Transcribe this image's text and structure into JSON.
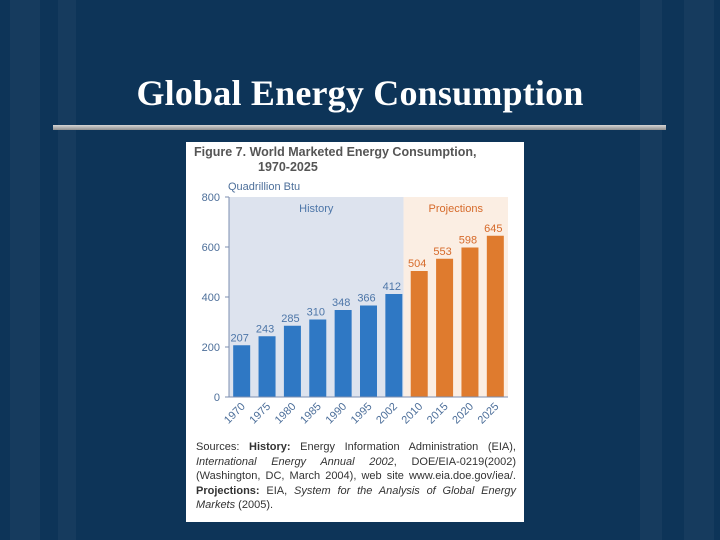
{
  "slide": {
    "title": "Global Energy Consumption"
  },
  "figure": {
    "title_line1": "Figure 7. World Marketed Energy Consumption,",
    "title_line2": "1970-2025",
    "sources": {
      "prefix": "Sources: ",
      "history_label": "History:",
      "history_text1": " Energy Information Administration (EIA), ",
      "history_pub": "International Energy Annual 2002",
      "history_text2": ", DOE/EIA-0219(2002) (Washington, DC, March 2004), web site www.eia.doe.gov/iea/. ",
      "projections_label": "Projections:",
      "projections_text1": " EIA, ",
      "projections_pub": "System for the Analysis of Global Energy Markets",
      "projections_text2": " (2005)."
    }
  },
  "chart_data": {
    "type": "bar",
    "title": "Figure 7. World Marketed Energy Consumption, 1970-2025",
    "ylabel": "Quadrillion Btu",
    "xlabel": "",
    "ylim": [
      0,
      800
    ],
    "yticks": [
      0,
      200,
      400,
      600,
      800
    ],
    "regions": [
      {
        "name": "History",
        "from": "1970",
        "to": "2002"
      },
      {
        "name": "Projections",
        "from": "2010",
        "to": "2025"
      }
    ],
    "categories": [
      "1970",
      "1975",
      "1980",
      "1985",
      "1990",
      "1995",
      "2002",
      "2010",
      "2015",
      "2020",
      "2025"
    ],
    "values": [
      207,
      243,
      285,
      310,
      348,
      366,
      412,
      504,
      553,
      598,
      645
    ],
    "series_by_bar": [
      "History",
      "History",
      "History",
      "History",
      "History",
      "History",
      "History",
      "Projections",
      "Projections",
      "Projections",
      "Projections"
    ],
    "colors": {
      "History": "#2f78c4",
      "Projections": "#df7b2e",
      "history_bg": "#dde3ee",
      "projections_bg": "#fbeee3",
      "history_text": "#4d76a8",
      "projections_text": "#d66a2a"
    }
  }
}
